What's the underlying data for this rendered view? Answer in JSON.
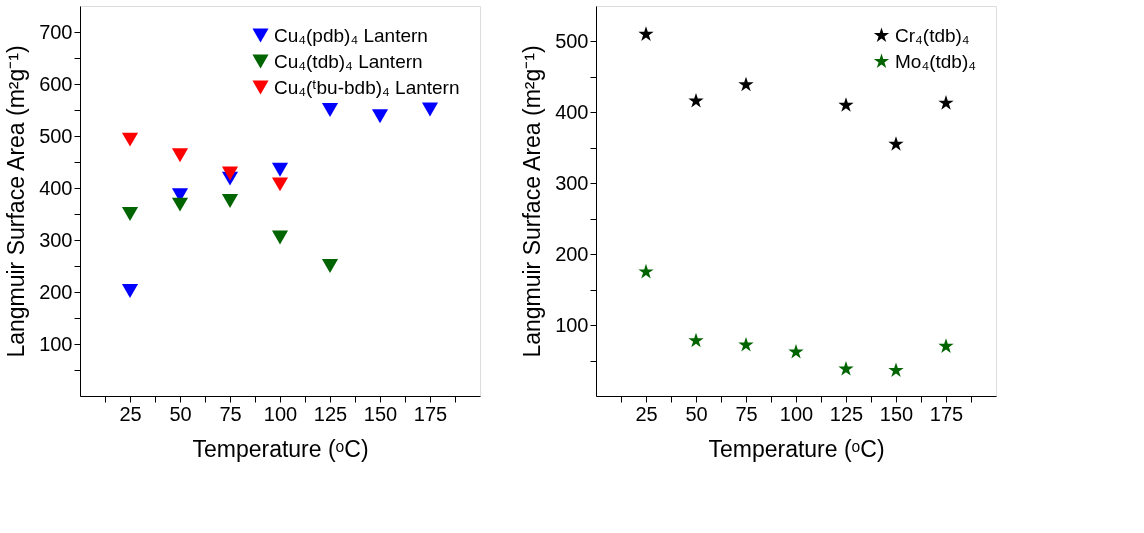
{
  "chart_data": [
    {
      "type": "scatter",
      "xlabel": "Temperature (ᵒC)",
      "ylabel": "Langmuir Surface Area (m²g⁻¹)",
      "xlim": [
        0,
        200
      ],
      "ylim": [
        0,
        750
      ],
      "xticks": [
        {
          "value": 12.5,
          "label": null
        },
        25,
        {
          "value": 37.5,
          "label": null
        },
        50,
        {
          "value": 62.5,
          "label": null
        },
        75,
        {
          "value": 87.5,
          "label": null
        },
        100,
        {
          "value": 112.5,
          "label": null
        },
        125,
        {
          "value": 137.5,
          "label": null
        },
        150,
        {
          "value": 162.5,
          "label": null
        },
        175,
        {
          "value": 187.5,
          "label": null
        }
      ],
      "yticks": [
        {
          "value": 50,
          "label": null
        },
        100,
        {
          "value": 150,
          "label": null
        },
        200,
        {
          "value": 250,
          "label": null
        },
        300,
        {
          "value": 350,
          "label": null
        },
        400,
        {
          "value": 450,
          "label": null
        },
        500,
        {
          "value": 550,
          "label": null
        },
        600,
        {
          "value": 650,
          "label": null
        },
        700
      ],
      "marker": "triangle",
      "legend": "top right",
      "grid": false,
      "series": [
        {
          "name": "Cu₄(pdb)₄ Lantern",
          "color": "#0000ff",
          "x": [
            25,
            50,
            75,
            100,
            125,
            150,
            175
          ],
          "values": [
            202,
            386,
            418,
            435,
            550,
            538,
            551
          ]
        },
        {
          "name": "Cu₄(tdb)₄ Lantern",
          "color": "#006400",
          "x": [
            25,
            50,
            75,
            100,
            125
          ],
          "values": [
            350,
            368,
            375,
            305,
            250
          ]
        },
        {
          "name": "Cu₄(ᵗbu-bdb)₄ Lantern",
          "color": "#ff0000",
          "x": [
            25,
            50,
            75,
            100
          ],
          "values": [
            493,
            463,
            428,
            407
          ]
        }
      ]
    },
    {
      "type": "scatter",
      "xlabel": "Temperature (ᵒC)",
      "ylabel": "Langmuir Surface Area (m²g⁻¹)",
      "xlim": [
        0,
        200
      ],
      "ylim": [
        0,
        550
      ],
      "xticks": [
        {
          "value": 12.5,
          "label": null
        },
        25,
        {
          "value": 37.5,
          "label": null
        },
        50,
        {
          "value": 62.5,
          "label": null
        },
        75,
        {
          "value": 87.5,
          "label": null
        },
        100,
        {
          "value": 112.5,
          "label": null
        },
        125,
        {
          "value": 137.5,
          "label": null
        },
        150,
        {
          "value": 162.5,
          "label": null
        },
        175,
        {
          "value": 187.5,
          "label": null
        }
      ],
      "yticks": [
        {
          "value": 50,
          "label": null
        },
        100,
        {
          "value": 150,
          "label": null
        },
        200,
        {
          "value": 250,
          "label": null
        },
        300,
        {
          "value": 350,
          "label": null
        },
        400,
        {
          "value": 450,
          "label": null
        },
        500
      ],
      "marker": "star",
      "legend": "top right",
      "grid": false,
      "series": [
        {
          "name": "Cr₄(tdb)₄",
          "color": "#000000",
          "x": [
            25,
            50,
            75,
            125,
            150,
            175
          ],
          "values": [
            510,
            416,
            439,
            410,
            355,
            413
          ]
        },
        {
          "name": "Mo₄(tdb)₄",
          "color": "#006400",
          "x": [
            25,
            50,
            75,
            100,
            125,
            150,
            175
          ],
          "values": [
            175,
            78,
            72,
            62,
            38,
            36,
            70
          ]
        }
      ]
    }
  ]
}
